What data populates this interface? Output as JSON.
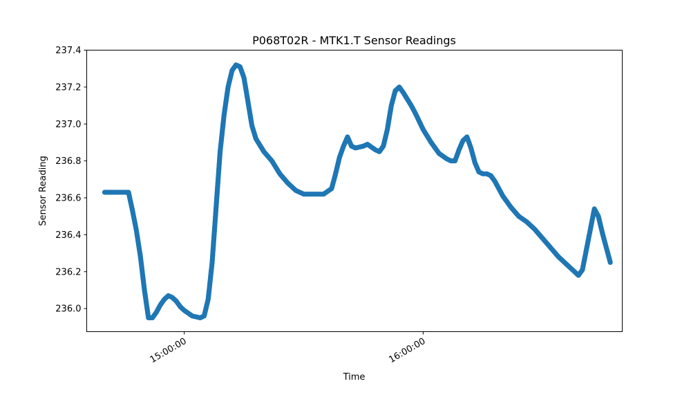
{
  "chart_data": {
    "type": "scatter",
    "title": "P068T02R - MTK1.T Sensor Readings",
    "xlabel": "Time",
    "ylabel": "Sensor Reading",
    "color": "#1f77b4",
    "x_tick_labels": [
      "15:00:00",
      "16:00:00"
    ],
    "y_tick_labels": [
      "236.0",
      "236.2",
      "236.4",
      "236.6",
      "236.8",
      "237.0",
      "237.2",
      "237.4"
    ],
    "y_ticks": [
      236.0,
      236.2,
      236.4,
      236.6,
      236.8,
      237.0,
      237.2,
      237.4
    ],
    "xlim": [
      "14:35:30",
      "16:50:00"
    ],
    "ylim": [
      235.875,
      237.4
    ],
    "grid": false,
    "points": [
      [
        "14:40:00",
        236.63
      ],
      [
        "14:42:00",
        236.63
      ],
      [
        "14:44:00",
        236.63
      ],
      [
        "14:46:00",
        236.63
      ],
      [
        "14:47:00",
        236.53
      ],
      [
        "14:48:00",
        236.42
      ],
      [
        "14:49:00",
        236.28
      ],
      [
        "14:50:00",
        236.1
      ],
      [
        "14:51:00",
        235.95
      ],
      [
        "14:52:00",
        235.95
      ],
      [
        "14:53:00",
        235.98
      ],
      [
        "14:54:00",
        236.02
      ],
      [
        "14:55:00",
        236.05
      ],
      [
        "14:56:00",
        236.07
      ],
      [
        "14:57:00",
        236.06
      ],
      [
        "14:58:00",
        236.04
      ],
      [
        "14:59:00",
        236.01
      ],
      [
        "15:00:00",
        235.99
      ],
      [
        "15:02:00",
        235.96
      ],
      [
        "15:04:00",
        235.95
      ],
      [
        "15:05:00",
        235.96
      ],
      [
        "15:06:00",
        236.05
      ],
      [
        "15:07:00",
        236.25
      ],
      [
        "15:08:00",
        236.55
      ],
      [
        "15:09:00",
        236.85
      ],
      [
        "15:10:00",
        237.05
      ],
      [
        "15:11:00",
        237.2
      ],
      [
        "15:12:00",
        237.29
      ],
      [
        "15:13:00",
        237.32
      ],
      [
        "15:14:00",
        237.31
      ],
      [
        "15:15:00",
        237.25
      ],
      [
        "15:16:00",
        237.12
      ],
      [
        "15:17:00",
        236.99
      ],
      [
        "15:18:00",
        236.92
      ],
      [
        "15:20:00",
        236.85
      ],
      [
        "15:22:00",
        236.8
      ],
      [
        "15:24:00",
        236.73
      ],
      [
        "15:26:00",
        236.68
      ],
      [
        "15:28:00",
        236.64
      ],
      [
        "15:30:00",
        236.62
      ],
      [
        "15:33:00",
        236.62
      ],
      [
        "15:35:00",
        236.62
      ],
      [
        "15:37:00",
        236.65
      ],
      [
        "15:38:00",
        236.73
      ],
      [
        "15:39:00",
        236.82
      ],
      [
        "15:40:00",
        236.88
      ],
      [
        "15:41:00",
        236.93
      ],
      [
        "15:42:00",
        236.88
      ],
      [
        "15:43:00",
        236.87
      ],
      [
        "15:45:00",
        236.88
      ],
      [
        "15:46:00",
        236.89
      ],
      [
        "15:48:00",
        236.86
      ],
      [
        "15:49:00",
        236.85
      ],
      [
        "15:50:00",
        236.88
      ],
      [
        "15:51:00",
        236.97
      ],
      [
        "15:52:00",
        237.1
      ],
      [
        "15:53:00",
        237.18
      ],
      [
        "15:54:00",
        237.2
      ],
      [
        "15:55:00",
        237.17
      ],
      [
        "15:57:00",
        237.1
      ],
      [
        "15:58:00",
        237.06
      ],
      [
        "16:00:00",
        236.97
      ],
      [
        "16:02:00",
        236.9
      ],
      [
        "16:04:00",
        236.84
      ],
      [
        "16:06:00",
        236.81
      ],
      [
        "16:07:00",
        236.8
      ],
      [
        "16:08:00",
        236.8
      ],
      [
        "16:09:00",
        236.86
      ],
      [
        "16:10:00",
        236.91
      ],
      [
        "16:11:00",
        236.93
      ],
      [
        "16:12:00",
        236.87
      ],
      [
        "16:13:00",
        236.79
      ],
      [
        "16:14:00",
        236.74
      ],
      [
        "16:15:00",
        236.73
      ],
      [
        "16:16:00",
        236.73
      ],
      [
        "16:17:00",
        236.72
      ],
      [
        "16:18:00",
        236.69
      ],
      [
        "16:20:00",
        236.61
      ],
      [
        "16:22:00",
        236.55
      ],
      [
        "16:24:00",
        236.5
      ],
      [
        "16:26:00",
        236.47
      ],
      [
        "16:28:00",
        236.43
      ],
      [
        "16:30:00",
        236.38
      ],
      [
        "16:32:00",
        236.33
      ],
      [
        "16:34:00",
        236.28
      ],
      [
        "16:36:00",
        236.24
      ],
      [
        "16:38:00",
        236.2
      ],
      [
        "16:39:00",
        236.18
      ],
      [
        "16:40:00",
        236.21
      ],
      [
        "16:41:00",
        236.32
      ],
      [
        "16:42:00",
        236.43
      ],
      [
        "16:43:00",
        236.54
      ],
      [
        "16:44:00",
        236.5
      ],
      [
        "16:45:00",
        236.41
      ],
      [
        "16:46:00",
        236.33
      ],
      [
        "16:47:00",
        236.25
      ]
    ]
  }
}
